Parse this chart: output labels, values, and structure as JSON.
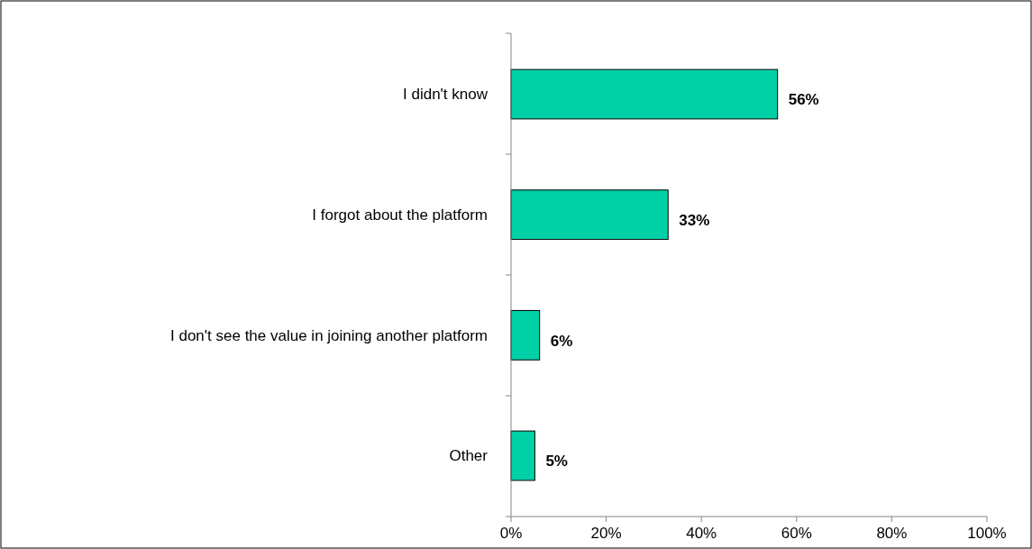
{
  "chart_data": {
    "type": "bar",
    "orientation": "horizontal",
    "categories": [
      "I didn't know",
      "I forgot about the platform",
      "I don't see the value in joining another platform",
      "Other"
    ],
    "values": [
      56,
      33,
      6,
      5
    ],
    "value_labels": [
      "56%",
      "33%",
      "6%",
      "5%"
    ],
    "color": "#00d0a6",
    "xlim": [
      0,
      100
    ],
    "xticks": [
      {
        "value": 0,
        "label": "0%"
      },
      {
        "value": 20,
        "label": "20%"
      },
      {
        "value": 40,
        "label": "40%"
      },
      {
        "value": 60,
        "label": "60%"
      },
      {
        "value": 80,
        "label": "80%"
      },
      {
        "value": 100,
        "label": "100%"
      }
    ],
    "grid": false
  }
}
